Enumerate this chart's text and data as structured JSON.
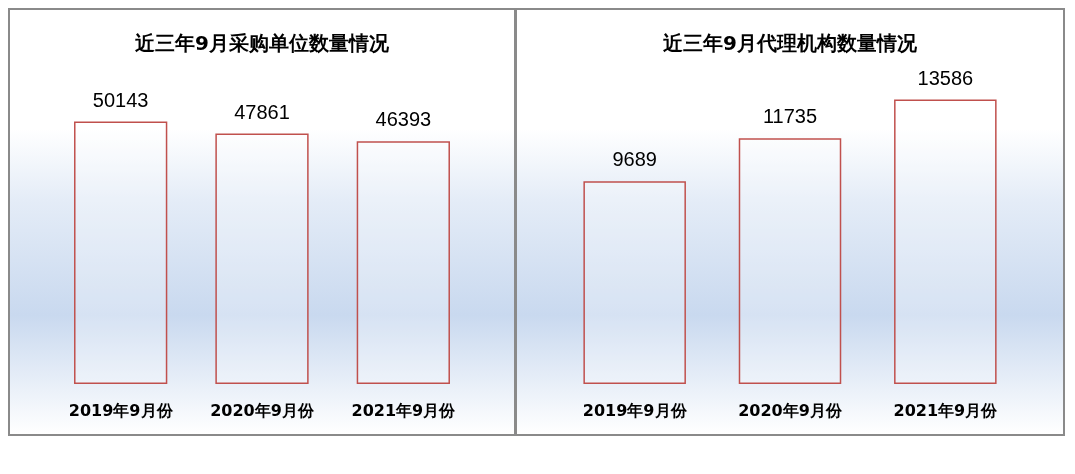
{
  "chart_data": [
    {
      "type": "bar",
      "title": "近三年9月采购单位数量情况",
      "categories": [
        "2019年9月份",
        "2020年9月份",
        "2021年9月份"
      ],
      "values": [
        50143,
        47861,
        46393
      ],
      "color": "#c0504d",
      "data_labels": true
    },
    {
      "type": "bar",
      "title": "近三年9月代理机构数量情况",
      "categories": [
        "2019年9月份",
        "2020年9月份",
        "2021年9月份"
      ],
      "values": [
        9689,
        11735,
        13586
      ],
      "color": "#c0504d",
      "data_labels": true
    }
  ]
}
